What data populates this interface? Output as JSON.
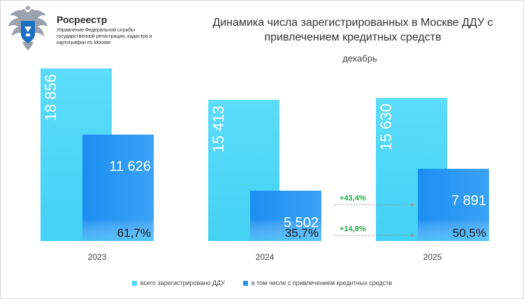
{
  "header": {
    "brand_name": "Росреестр",
    "brand_sub": "Управление Федеральной службы государственной регистрации, кадастра и картографии по Москве",
    "title": "Динамика числа зарегистрированных в Москве ДДУ с привлечением кредитных средств",
    "subtitle": "декабрь"
  },
  "colors": {
    "total": "#4dd6f7",
    "credit": "#2196f3",
    "growth": "#22a946",
    "axis_text": "#444444"
  },
  "chart_data": {
    "type": "bar",
    "title": "Динамика числа зарегистрированных в Москве ДДУ с привлечением кредитных средств",
    "subtitle": "декабрь",
    "xlabel": "",
    "ylabel": "",
    "ylim": [
      0,
      20000
    ],
    "grid": false,
    "legend_position": "bottom",
    "categories": [
      "2023",
      "2024",
      "2025"
    ],
    "series": [
      {
        "name": "всего зарегистрировано ДДУ",
        "values": [
          18856,
          15413,
          15630
        ],
        "labels": [
          "18 856",
          "15 413",
          "15 630"
        ]
      },
      {
        "name": "в том числе с привлечением кредитных средств",
        "values": [
          11626,
          5502,
          7891
        ],
        "labels": [
          "11 626",
          "5 502",
          "7 891"
        ],
        "share_labels": [
          "61,7%",
          "35,7%",
          "50,5%"
        ]
      }
    ],
    "annotations": [
      {
        "text": "+43,4%",
        "from": "2024",
        "to": "2025",
        "series": "в том числе с привлечением кредитных средств"
      },
      {
        "text": "+14,8%",
        "from": "2024",
        "to": "2025",
        "series": "share"
      }
    ]
  }
}
